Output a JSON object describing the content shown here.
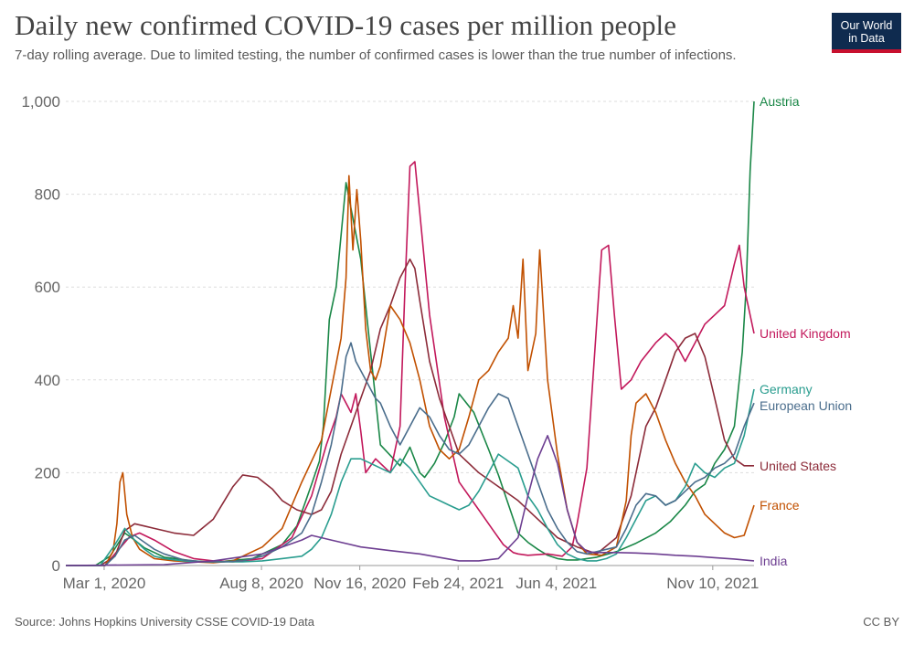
{
  "header": {
    "title": "Daily new confirmed COVID-19 cases per million people",
    "subtitle": "7-day rolling average. Due to limited testing, the number of confirmed cases is lower than the true number of infections.",
    "logo_line1": "Our World",
    "logo_line2": "in Data"
  },
  "footer": {
    "source": "Source: Johns Hopkins University CSSE COVID-19 Data",
    "license": "CC BY"
  },
  "chart_data": {
    "type": "line",
    "title": "Daily new confirmed COVID-19 cases per million people",
    "xlabel": "",
    "ylabel": "",
    "x_unit": "days since Jan 22, 2020",
    "xlim": [
      0,
      700
    ],
    "ylim": [
      0,
      1000
    ],
    "grid": true,
    "y_ticks": [
      {
        "value": 0,
        "label": "0"
      },
      {
        "value": 200,
        "label": "200"
      },
      {
        "value": 400,
        "label": "400"
      },
      {
        "value": 600,
        "label": "600"
      },
      {
        "value": 800,
        "label": "800"
      },
      {
        "value": 1000,
        "label": "1,000"
      }
    ],
    "x_ticks": [
      {
        "value": 39,
        "label": "Mar 1, 2020"
      },
      {
        "value": 199,
        "label": "Aug 8, 2020"
      },
      {
        "value": 299,
        "label": "Nov 16, 2020"
      },
      {
        "value": 399,
        "label": "Feb 24, 2021"
      },
      {
        "value": 499,
        "label": "Jun 4, 2021"
      },
      {
        "value": 658,
        "label": "Nov 10, 2021"
      }
    ],
    "series": [
      {
        "name": "Austria",
        "color": "#1a8747",
        "x": [
          0,
          30,
          45,
          60,
          70,
          80,
          100,
          130,
          150,
          190,
          220,
          235,
          250,
          258,
          262,
          268,
          275,
          285,
          300,
          320,
          340,
          350,
          360,
          365,
          375,
          385,
          395,
          400,
          415,
          430,
          440,
          460,
          470,
          480,
          490,
          500,
          510,
          520,
          540,
          560,
          580,
          600,
          615,
          630,
          640,
          650,
          660,
          670,
          680,
          688,
          692,
          696,
          700
        ],
        "y": [
          0,
          0,
          20,
          70,
          55,
          38,
          18,
          10,
          7,
          15,
          45,
          85,
          175,
          225,
          300,
          530,
          600,
          825,
          660,
          260,
          215,
          255,
          200,
          190,
          220,
          265,
          320,
          370,
          330,
          250,
          195,
          70,
          50,
          35,
          22,
          15,
          12,
          12,
          18,
          30,
          48,
          70,
          95,
          130,
          160,
          175,
          220,
          250,
          300,
          460,
          600,
          850,
          1000
        ]
      },
      {
        "name": "United Kingdom",
        "color": "#c2185b",
        "x": [
          0,
          40,
          52,
          65,
          75,
          90,
          110,
          130,
          150,
          170,
          200,
          230,
          250,
          265,
          275,
          280,
          290,
          295,
          300,
          305,
          315,
          330,
          340,
          345,
          350,
          355,
          360,
          370,
          385,
          400,
          420,
          435,
          445,
          455,
          460,
          470,
          490,
          505,
          515,
          520,
          530,
          545,
          552,
          558,
          565,
          575,
          585,
          600,
          610,
          620,
          630,
          640,
          645,
          650,
          660,
          670,
          680,
          685,
          690,
          700
        ],
        "y": [
          0,
          0,
          30,
          62,
          70,
          55,
          30,
          15,
          10,
          8,
          15,
          60,
          150,
          260,
          320,
          370,
          330,
          370,
          290,
          200,
          230,
          200,
          300,
          600,
          860,
          870,
          760,
          540,
          320,
          180,
          120,
          75,
          45,
          28,
          25,
          22,
          25,
          20,
          40,
          90,
          210,
          680,
          690,
          540,
          380,
          400,
          440,
          480,
          500,
          480,
          440,
          480,
          500,
          520,
          540,
          560,
          650,
          690,
          600,
          500
        ]
      },
      {
        "name": "United States",
        "color": "#8c2b39",
        "x": [
          0,
          35,
          50,
          60,
          70,
          80,
          90,
          100,
          110,
          130,
          150,
          170,
          180,
          195,
          210,
          220,
          235,
          250,
          260,
          270,
          280,
          290,
          300,
          310,
          320,
          330,
          340,
          350,
          355,
          360,
          370,
          380,
          400,
          420,
          440,
          460,
          480,
          500,
          520,
          540,
          560,
          575,
          590,
          600,
          610,
          620,
          630,
          640,
          650,
          660,
          670,
          680,
          690,
          700
        ],
        "y": [
          0,
          0,
          20,
          75,
          90,
          85,
          80,
          75,
          70,
          65,
          100,
          170,
          195,
          190,
          165,
          140,
          120,
          110,
          120,
          160,
          240,
          300,
          360,
          420,
          510,
          560,
          620,
          660,
          640,
          570,
          440,
          360,
          240,
          200,
          170,
          140,
          100,
          60,
          40,
          25,
          60,
          150,
          300,
          340,
          400,
          460,
          490,
          500,
          450,
          360,
          270,
          230,
          215,
          215
        ]
      },
      {
        "name": "France",
        "color": "#c15000",
        "x": [
          0,
          40,
          48,
          52,
          55,
          58,
          62,
          68,
          75,
          90,
          110,
          130,
          150,
          170,
          200,
          220,
          230,
          240,
          260,
          270,
          280,
          285,
          288,
          292,
          296,
          300,
          305,
          310,
          315,
          320,
          330,
          340,
          350,
          360,
          370,
          380,
          390,
          400,
          410,
          420,
          430,
          440,
          450,
          455,
          460,
          465,
          470,
          478,
          482,
          490,
          500,
          510,
          520,
          530,
          545,
          560,
          570,
          575,
          580,
          590,
          600,
          610,
          620,
          630,
          640,
          650,
          660,
          670,
          680,
          690,
          700
        ],
        "y": [
          0,
          0,
          30,
          90,
          180,
          200,
          110,
          60,
          35,
          15,
          10,
          8,
          6,
          10,
          40,
          80,
          130,
          180,
          270,
          380,
          490,
          620,
          840,
          680,
          810,
          700,
          510,
          420,
          400,
          430,
          560,
          530,
          480,
          400,
          300,
          250,
          230,
          250,
          320,
          400,
          420,
          460,
          490,
          560,
          490,
          660,
          420,
          500,
          680,
          400,
          240,
          120,
          50,
          25,
          22,
          40,
          140,
          280,
          350,
          370,
          330,
          270,
          220,
          180,
          150,
          110,
          90,
          70,
          60,
          65,
          130
        ]
      },
      {
        "name": "Germany",
        "color": "#2a9d8f",
        "x": [
          0,
          35,
          50,
          60,
          70,
          80,
          90,
          100,
          120,
          140,
          160,
          180,
          200,
          220,
          240,
          250,
          260,
          270,
          280,
          290,
          300,
          310,
          320,
          330,
          340,
          350,
          360,
          370,
          380,
          390,
          400,
          410,
          420,
          430,
          440,
          460,
          470,
          480,
          490,
          500,
          510,
          520,
          530,
          540,
          550,
          560,
          570,
          580,
          590,
          600,
          610,
          620,
          630,
          640,
          650,
          660,
          670,
          680,
          690,
          700
        ],
        "y": [
          0,
          0,
          45,
          80,
          55,
          35,
          20,
          15,
          10,
          8,
          8,
          8,
          10,
          15,
          20,
          35,
          60,
          110,
          180,
          230,
          230,
          220,
          210,
          200,
          230,
          210,
          180,
          150,
          140,
          130,
          120,
          130,
          160,
          200,
          240,
          210,
          150,
          120,
          80,
          45,
          25,
          15,
          10,
          10,
          15,
          25,
          60,
          100,
          140,
          150,
          130,
          140,
          170,
          220,
          200,
          190,
          210,
          220,
          280,
          380
        ]
      },
      {
        "name": "European Union",
        "color": "#4a6d8c",
        "x": [
          0,
          40,
          50,
          60,
          70,
          80,
          90,
          100,
          120,
          140,
          160,
          180,
          200,
          220,
          240,
          250,
          260,
          270,
          280,
          285,
          290,
          295,
          300,
          305,
          310,
          315,
          320,
          330,
          340,
          350,
          360,
          370,
          380,
          390,
          400,
          410,
          420,
          430,
          440,
          450,
          460,
          470,
          480,
          490,
          500,
          510,
          520,
          530,
          540,
          560,
          570,
          580,
          590,
          600,
          610,
          620,
          630,
          640,
          650,
          660,
          670,
          680,
          690,
          700
        ],
        "y": [
          0,
          0,
          20,
          55,
          65,
          50,
          35,
          25,
          12,
          8,
          8,
          10,
          20,
          40,
          70,
          110,
          180,
          260,
          370,
          450,
          480,
          440,
          420,
          400,
          380,
          360,
          350,
          300,
          260,
          300,
          340,
          320,
          280,
          250,
          240,
          260,
          300,
          340,
          370,
          360,
          300,
          240,
          180,
          120,
          80,
          50,
          30,
          25,
          30,
          40,
          80,
          130,
          155,
          150,
          130,
          140,
          160,
          180,
          190,
          210,
          220,
          240,
          300,
          350
        ]
      },
      {
        "name": "India",
        "color": "#6d3e91",
        "x": [
          0,
          100,
          150,
          200,
          220,
          240,
          250,
          270,
          300,
          330,
          360,
          400,
          420,
          440,
          460,
          470,
          480,
          490,
          500,
          510,
          520,
          530,
          540,
          560,
          580,
          600,
          620,
          640,
          660,
          680,
          700
        ],
        "y": [
          0,
          2,
          10,
          25,
          40,
          55,
          65,
          55,
          40,
          32,
          25,
          10,
          10,
          15,
          60,
          150,
          230,
          280,
          220,
          120,
          50,
          30,
          28,
          28,
          27,
          25,
          22,
          20,
          17,
          14,
          10
        ]
      }
    ]
  }
}
